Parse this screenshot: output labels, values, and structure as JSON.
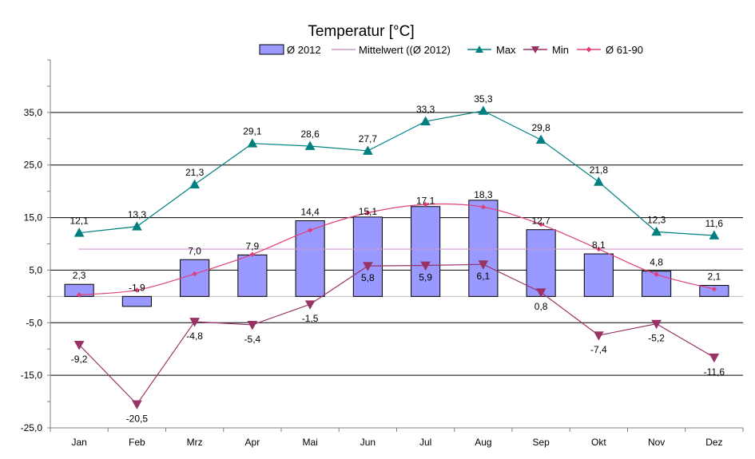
{
  "chart_data": {
    "type": "bar",
    "title": "Temperatur [°C]",
    "categories": [
      "Jan",
      "Feb",
      "Mrz",
      "Apr",
      "Mai",
      "Jun",
      "Jul",
      "Aug",
      "Sep",
      "Okt",
      "Nov",
      "Dez"
    ],
    "ylim": [
      -25,
      45
    ],
    "yticks": [
      35,
      25,
      15,
      5,
      -5,
      -15,
      -25
    ],
    "ytick_labels": [
      "35,0",
      "25,0",
      "15,0",
      "5,0",
      "-5,0",
      "-15,0",
      "-25,0"
    ],
    "grid": true,
    "legend_position": "top",
    "series": [
      {
        "name": "Ø 2012",
        "type": "bar",
        "color": "#9999ff",
        "values": [
          2.3,
          -1.9,
          7.0,
          7.9,
          14.4,
          15.1,
          17.1,
          18.3,
          12.7,
          8.1,
          4.8,
          2.1
        ],
        "labels": [
          "2,3",
          "-1,9",
          "7,0",
          "7,9",
          "14,4",
          "15,1",
          "17,1",
          "18,3",
          "12,7",
          "8,1",
          "4,8",
          "2,1"
        ]
      },
      {
        "name": "Mittelwert ((Ø 2012)",
        "type": "hline",
        "color": "#cc99cc",
        "value": 9.0
      },
      {
        "name": "Max",
        "type": "line",
        "marker": "triangle-up",
        "color": "#008080",
        "values": [
          12.1,
          13.3,
          21.3,
          29.1,
          28.6,
          27.7,
          33.3,
          35.3,
          29.8,
          21.8,
          12.3,
          11.6
        ],
        "labels": [
          "12,1",
          "13,3",
          "21,3",
          "29,1",
          "28,6",
          "27,7",
          "33,3",
          "35,3",
          "29,8",
          "21,8",
          "12,3",
          "11,6"
        ]
      },
      {
        "name": "Min",
        "type": "line",
        "marker": "triangle-down",
        "color": "#993366",
        "values": [
          -9.2,
          -20.5,
          -4.8,
          -5.4,
          -1.5,
          5.8,
          5.9,
          6.1,
          0.8,
          -7.4,
          -5.2,
          -11.6
        ],
        "labels": [
          "-9,2",
          "-20,5",
          "-4,8",
          "-5,4",
          "-1,5",
          "5,8",
          "5,9",
          "6,1",
          "0,8",
          "-7,4",
          "-5,2",
          "-11,6"
        ]
      },
      {
        "name": "Ø 61-90",
        "type": "line",
        "marker": "diamond",
        "color": "#e0407a",
        "values": [
          0.3,
          1.2,
          4.3,
          8.0,
          12.6,
          15.9,
          17.5,
          17.0,
          13.7,
          9.0,
          4.2,
          1.4
        ]
      }
    ]
  }
}
